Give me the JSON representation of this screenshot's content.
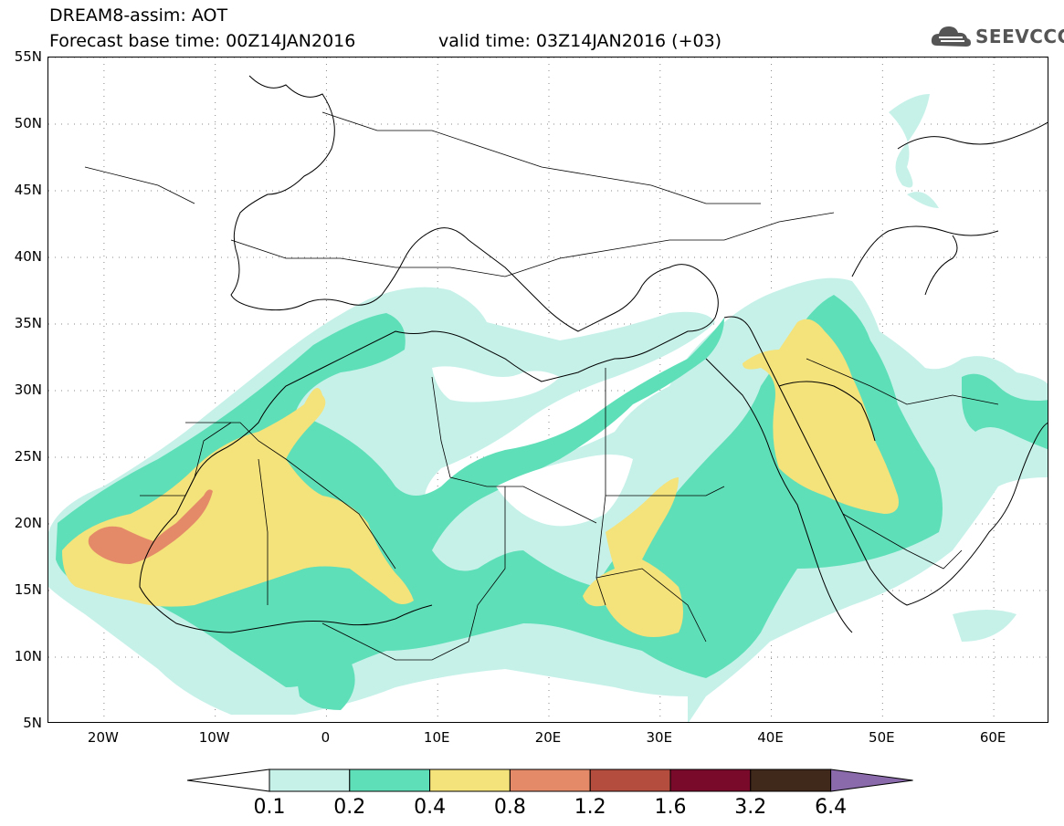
{
  "header": {
    "line1": "DREAM8-assim: AOT",
    "line2": "Forecast base time: 00Z14JAN2016",
    "valid": "valid time: 03Z14JAN2016 (+03)",
    "logo_text": "SEEVCCC",
    "logo_icon": "cloud-icon"
  },
  "map": {
    "lat_labels": [
      "55N",
      "50N",
      "45N",
      "40N",
      "35N",
      "30N",
      "25N",
      "20N",
      "15N",
      "10N",
      "5N"
    ],
    "lon_labels": [
      "20W",
      "10W",
      "0",
      "10E",
      "20E",
      "30E",
      "40E",
      "50E",
      "60E"
    ],
    "lat_range": [
      5,
      55
    ],
    "lon_range": [
      -25,
      65
    ],
    "grid": "dotted",
    "colors": {
      "c01": "#c6f1e9",
      "c02": "#5fdfb8",
      "c04": "#f4e27a",
      "c08": "#e48a68",
      "c12": "#b54d3e",
      "c16": "#7a0a2a",
      "c32": "#40281a",
      "c64": "#8a6aaa"
    }
  },
  "colorbar": {
    "labels": [
      "0.1",
      "0.2",
      "0.4",
      "0.8",
      "1.2",
      "1.6",
      "3.2",
      "6.4"
    ],
    "colors": [
      "#c6f1e9",
      "#5fdfb8",
      "#f4e27a",
      "#e48a68",
      "#b54d3e",
      "#7a0a2a",
      "#40281a"
    ],
    "over_color": "#8a6aaa",
    "under_color": "#ffffff"
  }
}
